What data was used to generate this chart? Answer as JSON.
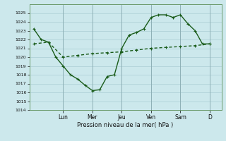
{
  "xlabel": "Pression niveau de la mer( hPa )",
  "bg_color": "#cce8ec",
  "grid_color": "#aacdd4",
  "line_color": "#1a5c1a",
  "ylim": [
    1014,
    1026
  ],
  "yticks": [
    1014,
    1015,
    1016,
    1017,
    1018,
    1019,
    1020,
    1021,
    1022,
    1023,
    1024,
    1025
  ],
  "day_labels": [
    "Lun",
    "Mer",
    "Jeu",
    "Ven",
    "Sam",
    "D"
  ],
  "day_positions": [
    2.0,
    4.0,
    6.0,
    8.0,
    10.0,
    12.0
  ],
  "line1_x": [
    0.0,
    0.5,
    1.0,
    1.5,
    2.0,
    2.5,
    3.0,
    3.5,
    4.0,
    4.5,
    5.0,
    5.5,
    6.0,
    6.5,
    7.0,
    7.5,
    8.0,
    8.5,
    9.0,
    9.5,
    10.0,
    10.5,
    11.0,
    11.5,
    12.0
  ],
  "line1_y": [
    1023.2,
    1022.0,
    1021.7,
    1020.0,
    1019.0,
    1018.0,
    1017.5,
    1016.8,
    1016.2,
    1016.3,
    1017.8,
    1018.0,
    1021.0,
    1022.5,
    1022.8,
    1023.2,
    1024.5,
    1024.8,
    1024.8,
    1024.5,
    1024.8,
    1023.8,
    1023.0,
    1021.5,
    1021.5
  ],
  "line2_x": [
    0.0,
    1.0,
    2.0,
    3.0,
    4.0,
    5.0,
    6.0,
    7.0,
    8.0,
    9.0,
    10.0,
    11.0,
    12.0
  ],
  "line2_y": [
    1021.5,
    1021.7,
    1020.0,
    1020.2,
    1020.4,
    1020.5,
    1020.6,
    1020.8,
    1021.0,
    1021.1,
    1021.2,
    1021.3,
    1021.5
  ],
  "marker_size": 2.5,
  "line_width": 1.0
}
